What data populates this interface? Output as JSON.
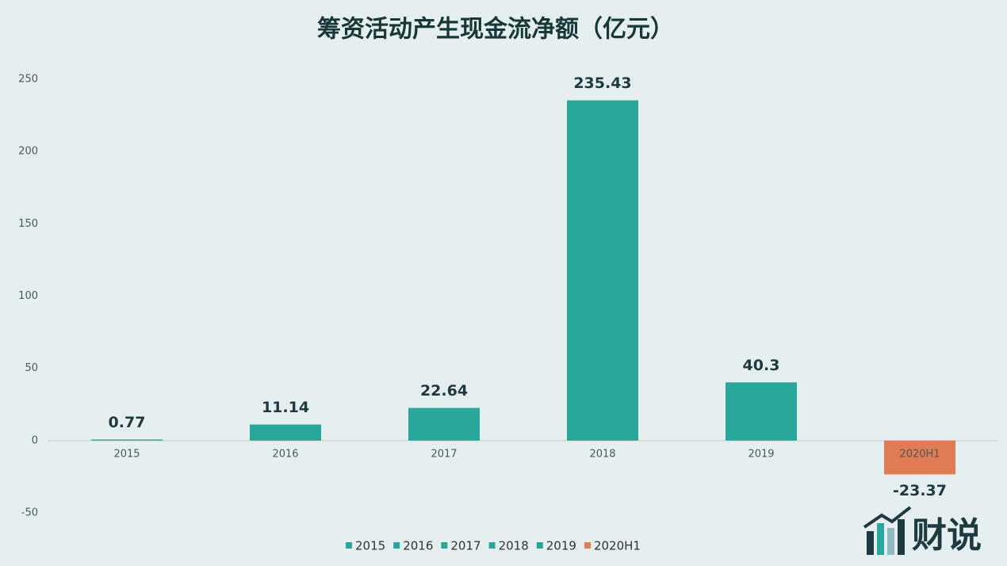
{
  "chart_data": {
    "type": "bar",
    "title": "筹资活动产生现金流净额（亿元）",
    "categories": [
      "2015",
      "2016",
      "2017",
      "2018",
      "2019",
      "2020H1"
    ],
    "values": [
      0.77,
      11.14,
      22.64,
      235.43,
      40.3,
      -23.37
    ],
    "colors": [
      "#2aa79b",
      "#2aa79b",
      "#2aa79b",
      "#2aa79b",
      "#2aa79b",
      "#e07b54"
    ],
    "ylim": [
      -50,
      250
    ],
    "yticks": [
      -50,
      0,
      50,
      100,
      150,
      200,
      250
    ],
    "grid": false,
    "legend": "bottom"
  },
  "logo": "财说"
}
